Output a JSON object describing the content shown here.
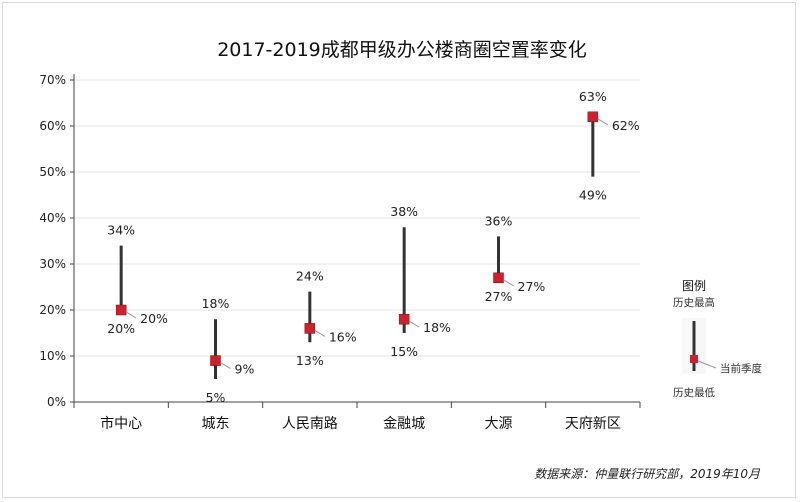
{
  "chart_data": {
    "type": "range",
    "title": "2017-2019成都甲级办公楼商圈空置率变化",
    "ylim": [
      0,
      70
    ],
    "yticks": [
      "0%",
      "10%",
      "20%",
      "30%",
      "40%",
      "50%",
      "60%",
      "70%"
    ],
    "categories": [
      "市中心",
      "城东",
      "人民南路",
      "金融城",
      "大源",
      "天府新区"
    ],
    "high": [
      34,
      18,
      24,
      38,
      36,
      63
    ],
    "low": [
      20,
      5,
      13,
      15,
      27,
      49
    ],
    "current": [
      20,
      9,
      16,
      18,
      27,
      62
    ],
    "high_labels": [
      "34%",
      "18%",
      "24%",
      "38%",
      "36%",
      "63%"
    ],
    "low_labels": [
      "20%",
      "5%",
      "13%",
      "15%",
      "27%",
      "49%"
    ],
    "current_labels": [
      "20%",
      "9%",
      "16%",
      "18%",
      "27%",
      "62%"
    ],
    "grid": true,
    "colors": {
      "range_line": "#333333",
      "marker": "#d0202a",
      "grid": "#e6e6e6"
    },
    "legend": {
      "title": "图例",
      "high_label": "历史最高",
      "current_label": "当前季度",
      "low_label": "历史最低",
      "position": "right"
    }
  },
  "source_note": "数据来源：仲量联行研究部，2019年10月"
}
